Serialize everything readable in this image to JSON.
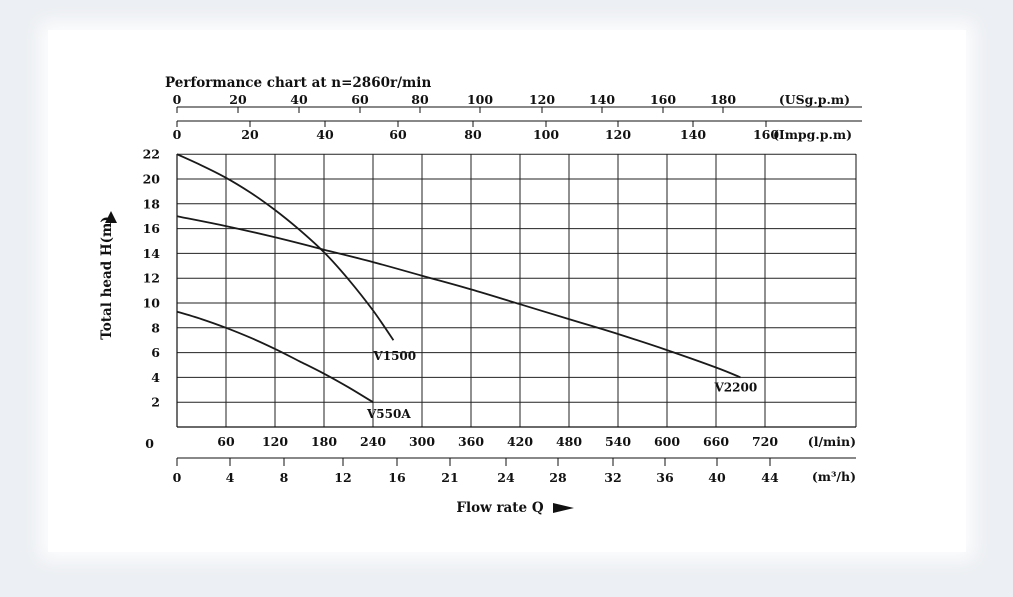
{
  "chart_data": {
    "type": "line",
    "title": "Performance chart at n=2860r/min",
    "ylabel": "Total head H(m)",
    "xlabel": "Flow rate Q",
    "ylim": [
      0,
      22
    ],
    "y_ticks": [
      2,
      4,
      6,
      8,
      10,
      12,
      14,
      16,
      18,
      20,
      22
    ],
    "y_zero_label": "0",
    "axes": {
      "lmin": {
        "unit": "(l/min)",
        "range": [
          0,
          720
        ],
        "ticks": [
          60,
          120,
          180,
          240,
          300,
          360,
          420,
          480,
          540,
          600,
          660,
          720
        ]
      },
      "m3h": {
        "unit": "(m³/h)",
        "ticks": [
          0,
          4,
          8,
          12,
          16,
          21,
          24,
          28,
          32,
          36,
          40,
          44
        ]
      },
      "usgpm": {
        "unit": "(USg.p.m)",
        "ticks": [
          0,
          20,
          40,
          60,
          80,
          100,
          120,
          140,
          160,
          180
        ]
      },
      "impgpm": {
        "unit": "(Impg.p.m)",
        "ticks": [
          0,
          20,
          40,
          60,
          80,
          100,
          120,
          140,
          160
        ]
      }
    },
    "series": [
      {
        "name": "V1500",
        "x": [
          0,
          30,
          60,
          90,
          120,
          150,
          180,
          210,
          240,
          265
        ],
        "y": [
          22,
          21.1,
          20.1,
          18.9,
          17.5,
          15.9,
          14.1,
          11.9,
          9.4,
          7
        ]
      },
      {
        "name": "V2200",
        "x": [
          0,
          60,
          120,
          180,
          240,
          300,
          360,
          420,
          480,
          540,
          600,
          660,
          690
        ],
        "y": [
          17,
          16.2,
          15.3,
          14.3,
          13.3,
          12.2,
          11.1,
          9.9,
          8.7,
          7.5,
          6.2,
          4.8,
          4
        ]
      },
      {
        "name": "V550A",
        "x": [
          0,
          30,
          60,
          90,
          120,
          150,
          180,
          210,
          240
        ],
        "y": [
          9.3,
          8.7,
          8.0,
          7.2,
          6.3,
          5.3,
          4.3,
          3.2,
          2
        ]
      }
    ]
  }
}
